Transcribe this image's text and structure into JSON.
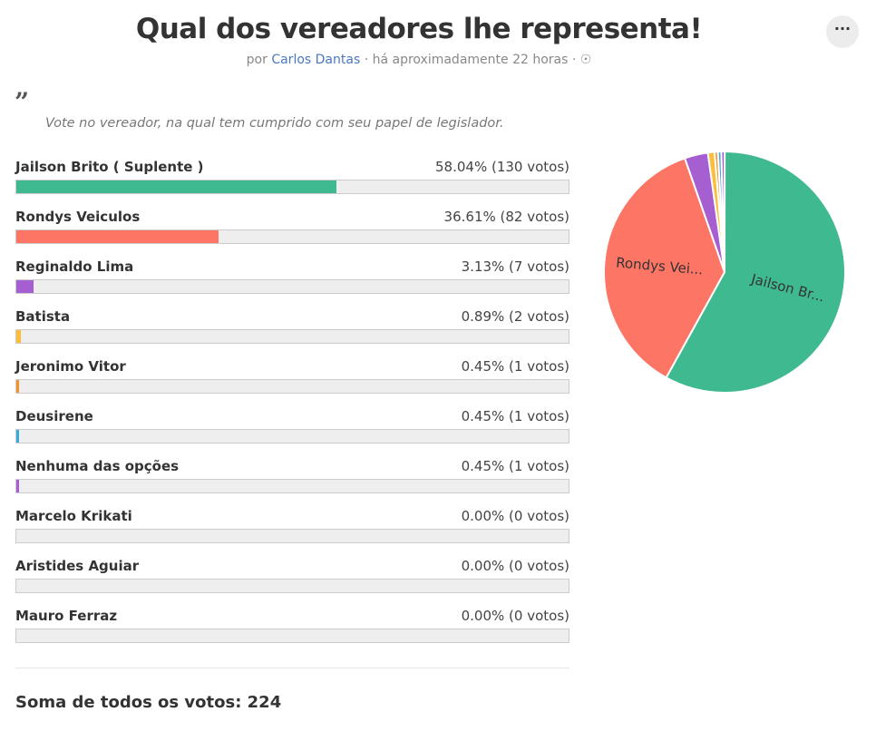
{
  "header": {
    "title": "Qual dos vereadores lhe representa!",
    "by": "por",
    "author": "Carlos Dantas",
    "time": "· há aproximadamente 22 horas ·"
  },
  "description": "Vote no vereador, na qual tem cumprido com seu papel de legislador.",
  "options": [
    {
      "name": "Jailson Brito ( Suplente )",
      "label": "58.04% (130 votos)",
      "percent": 58.04,
      "color": "#3fb98f"
    },
    {
      "name": "Rondys Veiculos",
      "label": "36.61% (82 votos)",
      "percent": 36.61,
      "color": "#fd7564"
    },
    {
      "name": "Reginaldo Lima",
      "label": "3.13% (7 votos)",
      "percent": 3.13,
      "color": "#a65fd1"
    },
    {
      "name": "Batista",
      "label": "0.89% (2 votos)",
      "percent": 0.89,
      "color": "#fbbd3a"
    },
    {
      "name": "Jeronimo Vitor",
      "label": "0.45% (1 votos)",
      "percent": 0.45,
      "color": "#f5902a"
    },
    {
      "name": "Deusirene",
      "label": "0.45% (1 votos)",
      "percent": 0.45,
      "color": "#3aa8e0"
    },
    {
      "name": "Nenhuma das opções",
      "label": "0.45% (1 votos)",
      "percent": 0.45,
      "color": "#a65fd1"
    },
    {
      "name": "Marcelo Krikati",
      "label": "0.00% (0 votos)",
      "percent": 0,
      "color": "#3fb98f"
    },
    {
      "name": "Aristides Aguiar",
      "label": "0.00% (0 votos)",
      "percent": 0,
      "color": "#fd7564"
    },
    {
      "name": "Mauro Ferraz",
      "label": "0.00% (0 votos)",
      "percent": 0,
      "color": "#a65fd1"
    }
  ],
  "pie_labels": [
    "Jailson Br...",
    "Rondys Vei..."
  ],
  "total": "Soma de todos os votos: 224"
}
